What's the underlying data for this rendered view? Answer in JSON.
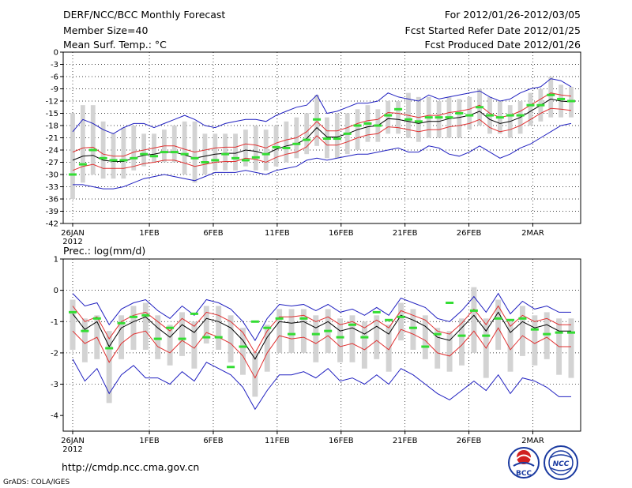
{
  "header": {
    "title": "DERF/NCC/BCC Monthly Forecast",
    "member_size": "Member Size=40",
    "variable_temp": "Mean Surf. Temp.: °C",
    "period": "For 2012/01/26-2012/03/05",
    "fcst_started": "Fcst Started Refer Date 2012/01/25",
    "fcst_produced": "Fcst Produced Date 2012/01/26"
  },
  "footer": {
    "url": "http://cmdp.ncc.cma.gov.cn",
    "grads_credit": "GrADS: COLA/IGES",
    "logo_bcc_text": "BCC",
    "logo_ncc_text": "NCC"
  },
  "colors": {
    "grid": "#000000",
    "box": "#d3d3d3",
    "mean": "#000000",
    "inner_band": "#e03030",
    "outer_band": "#2020c0",
    "marker": "#33dd33"
  },
  "chart_data": [
    {
      "type": "line",
      "title": "",
      "ylabel": "",
      "ylim": [
        -42,
        0
      ],
      "yticks": [
        "0",
        "-3",
        "-6",
        "-9",
        "-12",
        "-15",
        "-18",
        "-21",
        "-24",
        "-27",
        "-30",
        "-33",
        "-36",
        "-39",
        "-42"
      ],
      "ytick_values": [
        0,
        -3,
        -6,
        -9,
        -12,
        -15,
        -18,
        -21,
        -24,
        -27,
        -30,
        -33,
        -36,
        -39,
        -42
      ],
      "xlim": [
        0,
        39
      ],
      "xtick_positions": [
        0,
        6,
        11,
        16,
        21,
        26,
        31,
        36
      ],
      "xtick_labels": [
        "26JAN",
        "1FEB",
        "6FEB",
        "11FEB",
        "16FEB",
        "21FEB",
        "26FEB",
        "2MAR"
      ],
      "xtick_year": "2012",
      "series": [
        {
          "name": "mean",
          "values": [
            -26.5,
            -25.5,
            -25.3,
            -26.5,
            -26.8,
            -26.8,
            -26,
            -25.3,
            -25,
            -24.5,
            -24.5,
            -25.2,
            -26,
            -25.5,
            -25,
            -24.8,
            -24.8,
            -24,
            -24.3,
            -25,
            -23.8,
            -23,
            -22.5,
            -21.2,
            -18.5,
            -20.8,
            -20.8,
            -20,
            -19,
            -18.3,
            -18,
            -16.3,
            -16.5,
            -17,
            -17.5,
            -17,
            -17,
            -16.3,
            -16,
            -15.5,
            -14.5,
            -16.5,
            -17.5,
            -17,
            -16,
            -14.5,
            -13,
            -11.5,
            -12,
            -12.2
          ]
        },
        {
          "name": "inner_upper",
          "values": [
            -24.5,
            -23.5,
            -23.3,
            -25,
            -25.5,
            -25.5,
            -24.5,
            -24,
            -23.5,
            -23,
            -23,
            -23.8,
            -24.5,
            -24,
            -23.5,
            -23.3,
            -23.3,
            -22.5,
            -22.8,
            -23.5,
            -22.3,
            -21.5,
            -21,
            -19.5,
            -17,
            -19.3,
            -19.3,
            -18.5,
            -17.5,
            -16.8,
            -16.5,
            -14.8,
            -15,
            -15.5,
            -16,
            -15.5,
            -15.5,
            -14.8,
            -14.5,
            -14,
            -13,
            -15,
            -16,
            -15.5,
            -14.5,
            -13,
            -11.5,
            -10,
            -10.5,
            -10.8
          ]
        },
        {
          "name": "inner_lower",
          "values": [
            -29,
            -28,
            -27.5,
            -28.5,
            -28.5,
            -28.5,
            -28,
            -27.3,
            -27,
            -26.5,
            -26.5,
            -27.2,
            -28,
            -27.5,
            -27,
            -26.8,
            -26.8,
            -26,
            -26.3,
            -27,
            -25.8,
            -25,
            -24.5,
            -23.2,
            -20.5,
            -22.8,
            -22.8,
            -22,
            -21,
            -20.3,
            -20,
            -18.3,
            -18.5,
            -19,
            -19.5,
            -19,
            -19,
            -18.3,
            -18,
            -17.5,
            -16.5,
            -18.5,
            -19.5,
            -19,
            -18,
            -16.5,
            -15,
            -13.8,
            -14,
            -14.3
          ]
        },
        {
          "name": "outer_upper",
          "values": [
            -19.5,
            -16.5,
            -17.5,
            -19,
            -20,
            -18.5,
            -17.5,
            -17.5,
            -18.5,
            -17.5,
            -16.5,
            -15.5,
            -16.5,
            -18,
            -18.5,
            -17.5,
            -17,
            -16.5,
            -16.5,
            -17,
            -15.5,
            -14.5,
            -13.5,
            -13,
            -10.5,
            -15,
            -14.5,
            -13.5,
            -12.5,
            -12.5,
            -12,
            -10,
            -11,
            -11.5,
            -12,
            -10.5,
            -11.5,
            -11,
            -10.5,
            -10,
            -9.5,
            -11,
            -12,
            -11.5,
            -10,
            -9,
            -8.5,
            -6.5,
            -7,
            -8.5
          ]
        },
        {
          "name": "outer_lower",
          "values": [
            -32.5,
            -32.5,
            -33,
            -33.5,
            -33.5,
            -33,
            -32,
            -31,
            -30.5,
            -30,
            -30.5,
            -31,
            -31.5,
            -30.5,
            -29.5,
            -29.5,
            -29.5,
            -29,
            -29.5,
            -30,
            -29,
            -28.5,
            -28,
            -26.5,
            -26,
            -26.5,
            -26,
            -25.5,
            -25,
            -25,
            -24.5,
            -24,
            -23.5,
            -24.5,
            -24.5,
            -23,
            -23.5,
            -25,
            -25.5,
            -24.5,
            -23,
            -24.5,
            -26,
            -25,
            -23.5,
            -22.5,
            -21,
            -19.5,
            -18,
            -17.5
          ]
        },
        {
          "name": "box_top",
          "values": [
            -15,
            -13,
            -13,
            -17,
            -20,
            -18.5,
            -18,
            -20,
            -20,
            -19,
            -18,
            -17,
            -17,
            -20,
            -20,
            -20,
            -20,
            -19,
            -18,
            -19,
            -18,
            -17,
            -16,
            -15,
            -10.5,
            -16,
            -15,
            -15,
            -14,
            -13,
            -14,
            -12,
            -12,
            -10,
            -11,
            -11,
            -12,
            -11,
            -11.5,
            -11,
            -9,
            -11,
            -12,
            -13,
            -12,
            -10,
            -9,
            -6,
            -8,
            -8.5
          ]
        },
        {
          "name": "box_bottom",
          "values": [
            -36,
            -32,
            -30,
            -31,
            -31,
            -31,
            -29,
            -28,
            -27,
            -27,
            -27,
            -30,
            -32,
            -30,
            -29,
            -29,
            -29,
            -28,
            -29,
            -29,
            -28,
            -27,
            -26,
            -25,
            -23,
            -26,
            -26,
            -25,
            -24,
            -22,
            -22,
            -20,
            -20,
            -21,
            -22,
            -21,
            -21,
            -21,
            -21,
            -19,
            -18,
            -20,
            -20,
            -21,
            -20,
            -18,
            -17,
            -16,
            -16,
            -16
          ]
        },
        {
          "name": "marker",
          "values": [
            -30,
            -27.5,
            -24,
            -26,
            -26.5,
            -26.5,
            -26,
            -25,
            -25.5,
            -24.5,
            -24.5,
            -25,
            -26,
            -27,
            -26.5,
            -25,
            -26,
            -26.5,
            -25.8,
            -25,
            -23.3,
            -23.5,
            -22.5,
            -21.5,
            -16.5,
            -21.2,
            -21.2,
            -20,
            -18,
            -17.5,
            -18,
            -15.5,
            -14,
            -16.5,
            -17,
            -16,
            -16,
            -16,
            -15,
            -15.5,
            -13.5,
            -15.5,
            -16,
            -15.5,
            -15.5,
            -13,
            -13,
            -10.5,
            -11.5,
            -12
          ]
        }
      ]
    },
    {
      "type": "line",
      "title": "Prec.: log(mm/d)",
      "ylabel": "",
      "ylim": [
        -4.5,
        1
      ],
      "yticks": [
        "1",
        "0",
        "-1",
        "-2",
        "-3",
        "-4"
      ],
      "ytick_values": [
        1,
        0,
        -1,
        -2,
        -3,
        -4
      ],
      "xlim": [
        0,
        39
      ],
      "xtick_positions": [
        0,
        6,
        11,
        16,
        21,
        26,
        31,
        36
      ],
      "xtick_labels": [
        "26JAN",
        "1FEB",
        "6FEB",
        "11FEB",
        "16FEB",
        "21FEB",
        "26FEB",
        "2MAR"
      ],
      "xtick_year": "2012",
      "series": [
        {
          "name": "mean",
          "values": [
            -0.75,
            -1.25,
            -1.0,
            -1.8,
            -1.2,
            -1.0,
            -0.85,
            -1.2,
            -1.5,
            -1.1,
            -1.35,
            -0.9,
            -1.0,
            -1.2,
            -1.6,
            -2.2,
            -1.5,
            -1.0,
            -1.05,
            -1.0,
            -1.2,
            -1.0,
            -1.3,
            -1.2,
            -1.4,
            -1.15,
            -1.4,
            -0.8,
            -0.95,
            -1.15,
            -1.5,
            -1.6,
            -1.2,
            -0.8,
            -1.3,
            -0.7,
            -1.35,
            -1.0,
            -1.2,
            -1.1,
            -1.3,
            -1.3
          ]
        },
        {
          "name": "inner_upper",
          "values": [
            -0.5,
            -1.0,
            -0.85,
            -1.55,
            -1.0,
            -0.8,
            -0.7,
            -1.0,
            -1.3,
            -0.9,
            -1.15,
            -0.7,
            -0.8,
            -1.0,
            -1.35,
            -2.0,
            -1.3,
            -0.85,
            -0.85,
            -0.8,
            -1.0,
            -0.85,
            -1.1,
            -1.0,
            -1.2,
            -0.95,
            -1.2,
            -0.65,
            -0.8,
            -0.95,
            -1.3,
            -1.4,
            -1.05,
            -0.6,
            -1.1,
            -0.5,
            -1.15,
            -0.8,
            -1.0,
            -0.9,
            -1.1,
            -1.1
          ]
        },
        {
          "name": "inner_lower",
          "values": [
            -1.3,
            -1.7,
            -1.5,
            -2.3,
            -1.7,
            -1.4,
            -1.3,
            -1.8,
            -2.0,
            -1.6,
            -1.85,
            -1.35,
            -1.5,
            -1.7,
            -2.1,
            -2.8,
            -2.0,
            -1.45,
            -1.55,
            -1.5,
            -1.7,
            -1.45,
            -1.8,
            -1.7,
            -1.9,
            -1.6,
            -1.9,
            -1.25,
            -1.4,
            -1.6,
            -2.0,
            -2.1,
            -1.75,
            -1.3,
            -1.85,
            -1.2,
            -1.9,
            -1.45,
            -1.7,
            -1.5,
            -1.8,
            -1.8
          ]
        },
        {
          "name": "outer_upper",
          "values": [
            -0.1,
            -0.5,
            -0.4,
            -1.1,
            -0.6,
            -0.4,
            -0.3,
            -0.65,
            -0.9,
            -0.5,
            -0.8,
            -0.3,
            -0.4,
            -0.6,
            -1.0,
            -1.6,
            -0.9,
            -0.45,
            -0.5,
            -0.45,
            -0.65,
            -0.45,
            -0.7,
            -0.6,
            -0.8,
            -0.55,
            -0.8,
            -0.25,
            -0.4,
            -0.55,
            -0.9,
            -1.0,
            -0.65,
            -0.2,
            -0.7,
            -0.1,
            -0.75,
            -0.35,
            -0.6,
            -0.5,
            -0.7,
            -0.7
          ]
        },
        {
          "name": "outer_lower",
          "values": [
            -2.2,
            -2.9,
            -2.5,
            -3.3,
            -2.7,
            -2.4,
            -2.8,
            -2.8,
            -3.0,
            -2.6,
            -2.9,
            -2.3,
            -2.5,
            -2.7,
            -3.1,
            -3.8,
            -3.2,
            -2.7,
            -2.7,
            -2.6,
            -2.8,
            -2.5,
            -2.9,
            -2.8,
            -3.0,
            -2.7,
            -3.0,
            -2.5,
            -2.7,
            -3.0,
            -3.3,
            -3.5,
            -3.2,
            -2.9,
            -3.2,
            -2.7,
            -3.3,
            -2.8,
            -2.9,
            -3.1,
            -3.4,
            -3.4
          ]
        },
        {
          "name": "box_top",
          "values": [
            -0.3,
            -0.9,
            -0.8,
            -1.3,
            -0.8,
            -0.5,
            -0.4,
            -0.8,
            -1.1,
            -0.7,
            -1.0,
            -0.5,
            -0.5,
            -0.8,
            -1.2,
            -2.0,
            -1.1,
            -0.6,
            -0.6,
            -0.6,
            -0.8,
            -0.6,
            -0.9,
            -0.8,
            -1.0,
            -0.8,
            -1.1,
            -0.4,
            -0.6,
            -0.8,
            -1.2,
            -1.3,
            -0.9,
            0.1,
            -0.9,
            -0.3,
            -1.0,
            -0.5,
            -0.8,
            -0.7,
            -0.9,
            -0.9
          ]
        },
        {
          "name": "box_bottom",
          "values": [
            -1.9,
            -2.3,
            -2.2,
            -3.6,
            -2.2,
            -1.9,
            -1.9,
            -2.2,
            -2.4,
            -2.1,
            -2.5,
            -1.7,
            -1.9,
            -2.3,
            -2.7,
            -3.4,
            -2.6,
            -2.0,
            -2.0,
            -2.0,
            -2.3,
            -2.0,
            -2.3,
            -2.3,
            -2.5,
            -2.2,
            -2.6,
            -1.6,
            -1.9,
            -2.2,
            -2.5,
            -2.6,
            -2.4,
            -2.0,
            -2.8,
            -1.9,
            -2.6,
            -2.1,
            -2.4,
            -2.2,
            -2.7,
            -2.8
          ]
        },
        {
          "name": "marker",
          "values": [
            -0.7,
            -1.3,
            -0.9,
            -1.85,
            -1.05,
            -0.85,
            -0.8,
            -1.55,
            -1.2,
            -1.55,
            -0.75,
            -1.5,
            -1.5,
            -2.45,
            -1.8,
            -1.0,
            -1.2,
            -0.9,
            -1.4,
            -0.9,
            -1.4,
            -1.3,
            -1.5,
            -1.1,
            -1.5,
            -0.7,
            -0.95,
            -0.85,
            -1.2,
            -1.8,
            -1.4,
            -0.4,
            -1.45,
            -0.65,
            -1.45,
            -0.9,
            -0.95,
            -0.9,
            -1.25,
            -1.4,
            -1.35,
            -1.35
          ]
        }
      ]
    }
  ]
}
